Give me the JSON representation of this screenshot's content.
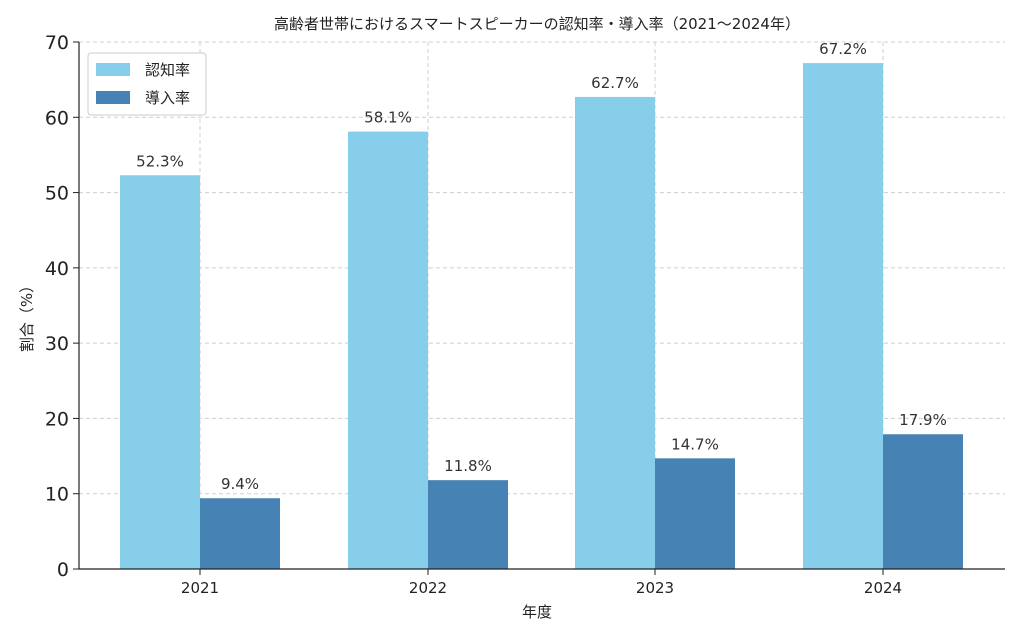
{
  "chart_data": {
    "type": "bar",
    "title": "高齢者世帯におけるスマートスピーカーの認知率・導入率（2021〜2024年）",
    "xlabel": "年度",
    "ylabel": "割合（%）",
    "categories": [
      "2021",
      "2022",
      "2023",
      "2024"
    ],
    "series": [
      {
        "name": "認知率",
        "values": [
          52.3,
          58.1,
          62.7,
          67.2
        ],
        "labels": [
          "52.3%",
          "58.1%",
          "62.7%",
          "67.2%"
        ],
        "color": "#87CEEB"
      },
      {
        "name": "導入率",
        "values": [
          9.4,
          11.8,
          14.7,
          17.9
        ],
        "labels": [
          "9.4%",
          "11.8%",
          "14.7%",
          "17.9%"
        ],
        "color": "#4682B4"
      }
    ],
    "ylim": [
      0,
      70
    ],
    "yticks": [
      "0",
      "10",
      "20",
      "30",
      "40",
      "50",
      "60",
      "70"
    ],
    "grid": true,
    "legend_position": "top-left"
  }
}
